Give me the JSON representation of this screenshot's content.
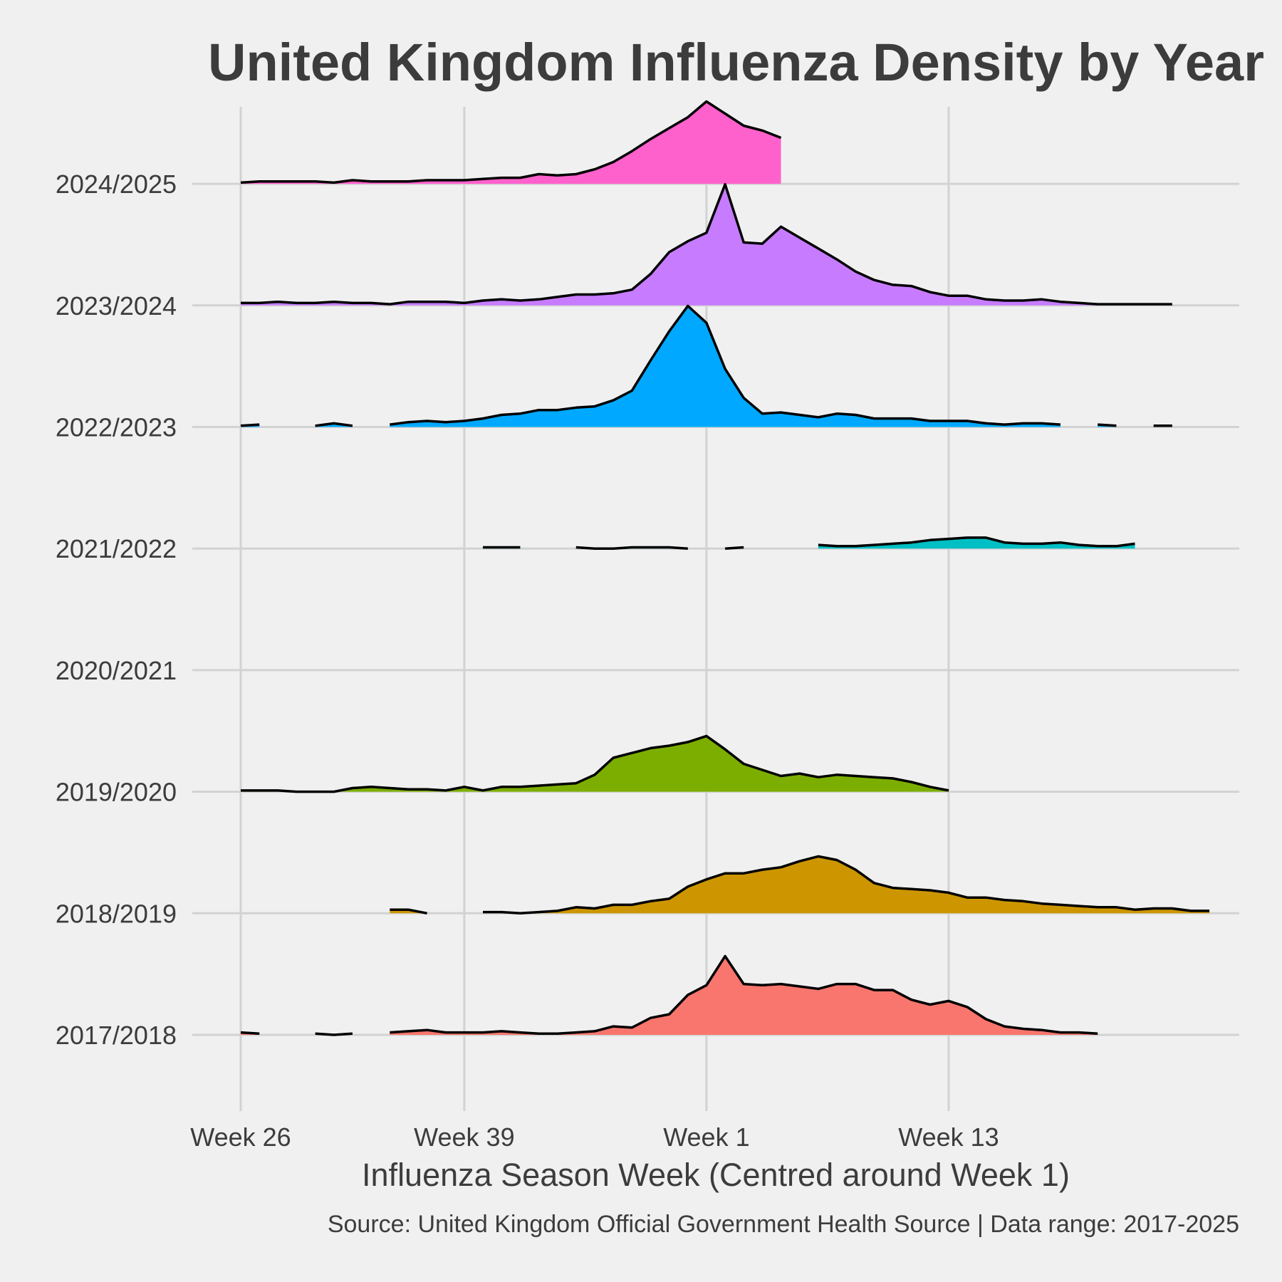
{
  "chart_data": {
    "type": "ridgeline-area",
    "title": "United Kingdom Influenza Density by Year",
    "xlabel": "Influenza Season Week (Centred around Week 1)",
    "ylabel": "",
    "caption": "Source: United Kingdom Official Government Health Source | Data range: 2017-2025",
    "x_ticks": [
      {
        "label": "Week 26",
        "index": 0
      },
      {
        "label": "Week 39",
        "index": 12
      },
      {
        "label": "Week 1",
        "index": 25
      },
      {
        "label": "Week 13",
        "index": 38
      }
    ],
    "x_range": [
      -2.6,
      53.6
    ],
    "x_unit": "season week index (0 = Week 26, 25 = Week 1)",
    "grid": true,
    "legend": "none",
    "series": [
      {
        "name": "2017/2018",
        "color": "#f8766d",
        "values": [
          0.02,
          0.01,
          null,
          null,
          0.01,
          0.0,
          0.01,
          null,
          0.02,
          0.03,
          0.04,
          0.02,
          0.02,
          0.02,
          0.03,
          0.02,
          0.01,
          0.01,
          0.02,
          0.03,
          0.07,
          0.06,
          0.14,
          0.17,
          0.33,
          0.41,
          0.65,
          0.42,
          0.41,
          0.42,
          0.4,
          0.38,
          0.42,
          0.42,
          0.37,
          0.37,
          0.29,
          0.25,
          0.28,
          0.23,
          0.13,
          0.07,
          0.05,
          0.04,
          0.02,
          0.02,
          0.01
        ]
      },
      {
        "name": "2018/2019",
        "color": "#cd9600",
        "values": [
          null,
          null,
          null,
          null,
          null,
          null,
          null,
          null,
          0.03,
          0.03,
          0.0,
          null,
          null,
          0.01,
          0.01,
          0.0,
          0.01,
          0.02,
          0.05,
          0.04,
          0.07,
          0.07,
          0.1,
          0.12,
          0.22,
          0.28,
          0.33,
          0.33,
          0.36,
          0.38,
          0.43,
          0.47,
          0.44,
          0.36,
          0.25,
          0.21,
          0.2,
          0.19,
          0.17,
          0.13,
          0.13,
          0.11,
          0.1,
          0.08,
          0.07,
          0.06,
          0.05,
          0.05,
          0.03,
          0.04,
          0.04,
          0.02,
          0.02
        ]
      },
      {
        "name": "2019/2020",
        "color": "#7cae00",
        "values": [
          0.01,
          0.01,
          0.01,
          0.0,
          0.0,
          0.0,
          0.03,
          0.04,
          0.03,
          0.02,
          0.02,
          0.01,
          0.04,
          0.01,
          0.04,
          0.04,
          0.05,
          0.06,
          0.07,
          0.14,
          0.28,
          0.32,
          0.36,
          0.38,
          0.41,
          0.46,
          0.35,
          0.23,
          0.18,
          0.13,
          0.15,
          0.12,
          0.14,
          0.13,
          0.12,
          0.11,
          0.08,
          0.04,
          0.01
        ]
      },
      {
        "name": "2020/2021",
        "color": "#00be67",
        "values": []
      },
      {
        "name": "2021/2022",
        "color": "#00bfc4",
        "values": [
          null,
          null,
          null,
          null,
          null,
          null,
          null,
          null,
          null,
          null,
          null,
          null,
          null,
          0.01,
          0.01,
          0.01,
          null,
          null,
          0.01,
          0.0,
          0.0,
          0.01,
          0.01,
          0.01,
          0.0,
          null,
          0.0,
          0.01,
          null,
          null,
          null,
          0.03,
          0.02,
          0.02,
          0.03,
          0.04,
          0.05,
          0.07,
          0.08,
          0.09,
          0.09,
          0.05,
          0.04,
          0.04,
          0.05,
          0.03,
          0.02,
          0.02,
          0.04
        ]
      },
      {
        "name": "2022/2023",
        "color": "#00a9ff",
        "values": [
          0.01,
          0.02,
          null,
          null,
          0.01,
          0.03,
          0.01,
          null,
          0.02,
          0.04,
          0.05,
          0.04,
          0.05,
          0.07,
          0.1,
          0.11,
          0.14,
          0.14,
          0.16,
          0.17,
          0.22,
          0.3,
          0.55,
          0.79,
          1.0,
          0.86,
          0.48,
          0.24,
          0.11,
          0.12,
          0.1,
          0.08,
          0.11,
          0.1,
          0.07,
          0.07,
          0.07,
          0.05,
          0.05,
          0.05,
          0.03,
          0.02,
          0.03,
          0.03,
          0.02,
          null,
          0.02,
          0.01,
          null,
          0.01,
          0.01
        ]
      },
      {
        "name": "2023/2024",
        "color": "#c77cff",
        "values": [
          0.02,
          0.02,
          0.03,
          0.02,
          0.02,
          0.03,
          0.02,
          0.02,
          0.01,
          0.03,
          0.03,
          0.03,
          0.02,
          0.04,
          0.05,
          0.04,
          0.05,
          0.07,
          0.09,
          0.09,
          0.1,
          0.13,
          0.26,
          0.44,
          0.53,
          0.6,
          1.0,
          0.52,
          0.51,
          0.65,
          0.56,
          0.47,
          0.38,
          0.28,
          0.21,
          0.17,
          0.16,
          0.11,
          0.08,
          0.08,
          0.05,
          0.04,
          0.04,
          0.05,
          0.03,
          0.02,
          0.01,
          0.01,
          0.01,
          0.01,
          0.01
        ]
      },
      {
        "name": "2024/2025",
        "color": "#ff61cc",
        "values": [
          0.01,
          0.02,
          0.02,
          0.02,
          0.02,
          0.01,
          0.03,
          0.02,
          0.02,
          0.02,
          0.03,
          0.03,
          0.03,
          0.04,
          0.05,
          0.05,
          0.08,
          0.07,
          0.08,
          0.12,
          0.18,
          0.27,
          0.37,
          0.46,
          0.55,
          0.68,
          0.58,
          0.48,
          0.44,
          0.38
        ]
      }
    ]
  }
}
